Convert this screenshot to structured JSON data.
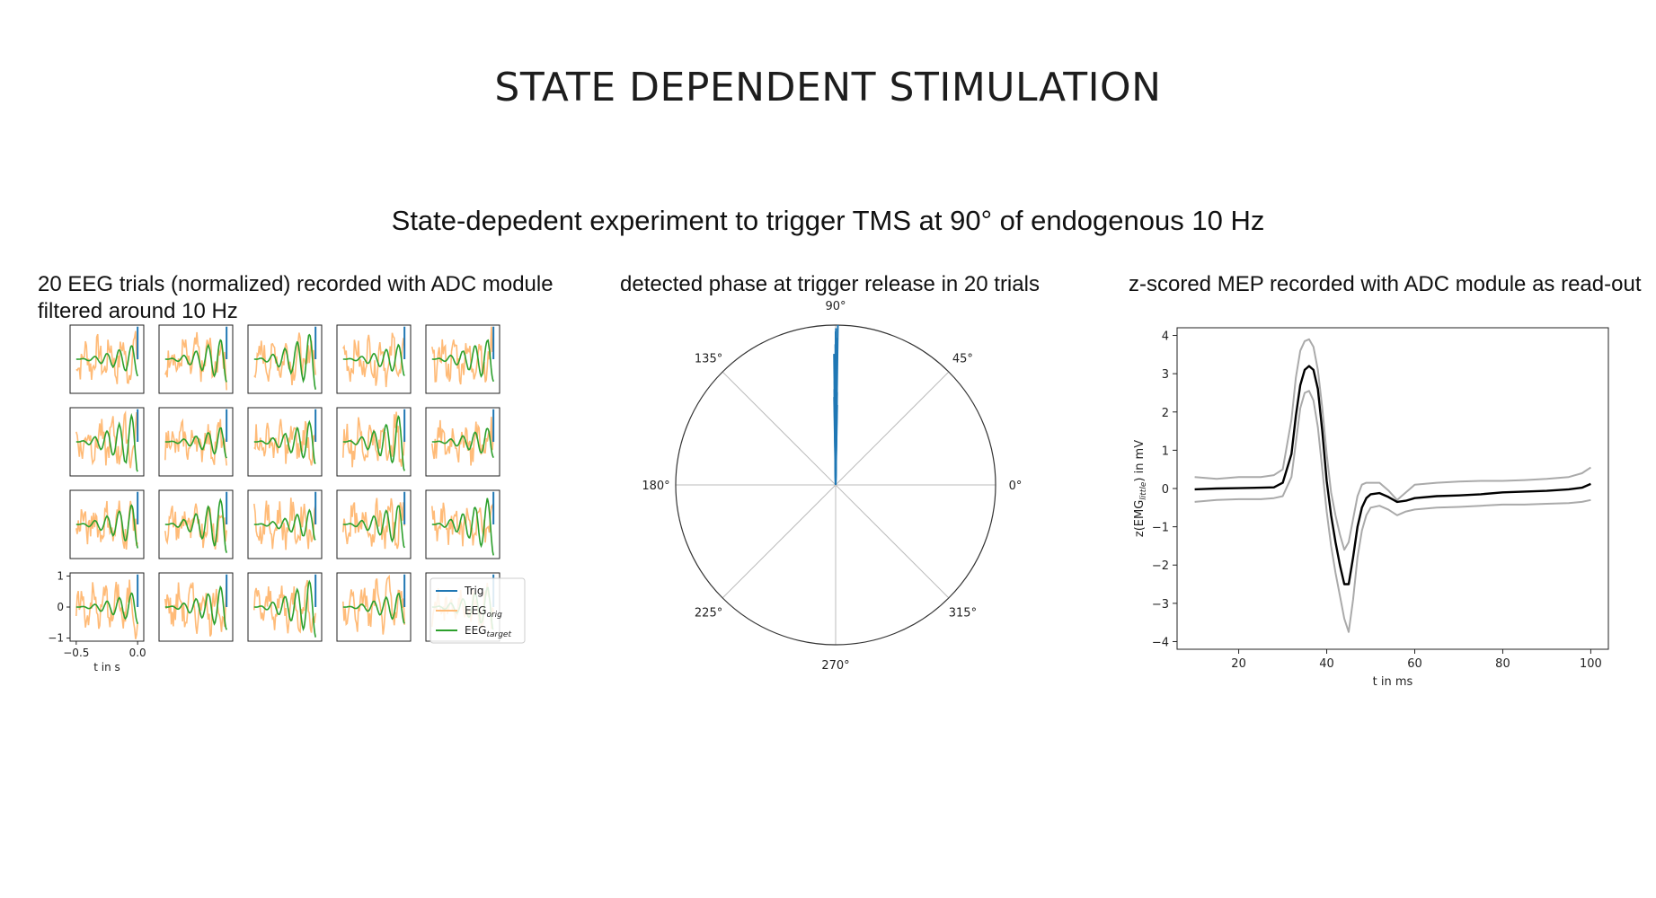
{
  "page": {
    "title": "STATE DEPENDENT STIMULATION",
    "subtitle": "State-depedent experiment to trigger TMS at 90° of endogenous 10 Hz"
  },
  "panels": {
    "eeg": {
      "caption_line1": "20 EEG trials (normalized) recorded with ADC module",
      "caption_line2": "filtered around 10 Hz"
    },
    "phase": {
      "caption": "detected phase at trigger release in 20 trials"
    },
    "mep": {
      "caption": "z-scored MEP recorded with ADC module as read-out"
    }
  },
  "colors": {
    "trig": "#1f77b4",
    "eeg_orig": "#ffbb78",
    "eeg_target": "#2ca02c",
    "mean": "#000000",
    "band": "#aaaaaa"
  },
  "chart_data": [
    {
      "id": "eeg-trials",
      "type": "line",
      "grid": "4x5 small multiples",
      "n_trials": 20,
      "xlabel": "t in s",
      "xlim": [
        -0.55,
        0.05
      ],
      "ylim": [
        -1.1,
        1.1
      ],
      "xticks": [
        -0.5,
        0.0
      ],
      "xtick_labels": [
        "−0.5",
        "0.0"
      ],
      "yticks": [
        1,
        0,
        -1
      ],
      "ytick_labels": [
        "1",
        "0",
        "−1"
      ],
      "target_freq_hz": 10,
      "series": [
        {
          "name": "Trig",
          "legend_label": "Trig",
          "legend_sub": ""
        },
        {
          "name": "EEG_orig",
          "legend_label": "EEG",
          "legend_sub": "orig"
        },
        {
          "name": "EEG_target",
          "legend_label": "EEG",
          "legend_sub": "target"
        }
      ],
      "legend": "lower-right of last row"
    },
    {
      "id": "phase-polar",
      "type": "polar",
      "title": "detected phase at trigger release in 20 trials",
      "angle_ticks": [
        0,
        45,
        90,
        135,
        180,
        225,
        270,
        315
      ],
      "angle_labels": [
        "0°",
        "45°",
        "90°",
        "135°",
        "180°",
        "225°",
        "270°",
        "315°"
      ],
      "phases_deg": [
        89.2,
        89.6,
        90.0,
        90.4,
        90.8,
        89.8,
        90.2,
        91.0,
        89.4,
        90.6,
        89.9,
        90.1,
        88.9,
        90.3,
        89.7,
        90.5,
        89.5,
        90.7,
        90.0,
        89.1
      ],
      "radii": [
        1.0,
        0.85,
        0.95,
        0.7,
        0.6,
        0.9,
        0.75,
        0.55,
        0.8,
        0.65,
        0.98,
        0.88,
        0.5,
        0.78,
        0.92,
        0.6,
        0.7,
        0.82,
        0.96,
        0.58
      ]
    },
    {
      "id": "mep",
      "type": "line",
      "xlabel": "t in ms",
      "ylabel_main": "z(EMG",
      "ylabel_sub": "little",
      "ylabel_tail": ") in mV",
      "xlim": [
        6,
        104
      ],
      "ylim": [
        -4.2,
        4.2
      ],
      "xticks": [
        20,
        40,
        60,
        80,
        100
      ],
      "yticks": [
        4,
        3,
        2,
        1,
        0,
        -1,
        -2,
        -3,
        -4
      ],
      "ytick_labels": [
        "4",
        "3",
        "2",
        "1",
        "0",
        "−1",
        "−2",
        "−3",
        "−4"
      ],
      "x": [
        10,
        15,
        20,
        25,
        28,
        30,
        32,
        33,
        34,
        35,
        36,
        37,
        38,
        39,
        40,
        41,
        42,
        43,
        44,
        45,
        46,
        47,
        48,
        49,
        50,
        52,
        54,
        56,
        58,
        60,
        65,
        70,
        75,
        80,
        85,
        90,
        95,
        98,
        100
      ],
      "series": [
        {
          "name": "mean",
          "values": [
            -0.02,
            0.0,
            0.01,
            0.02,
            0.03,
            0.15,
            0.9,
            1.9,
            2.7,
            3.1,
            3.2,
            3.1,
            2.6,
            1.5,
            0.2,
            -0.7,
            -1.4,
            -2.0,
            -2.5,
            -2.5,
            -1.8,
            -1.0,
            -0.5,
            -0.25,
            -0.15,
            -0.12,
            -0.22,
            -0.35,
            -0.32,
            -0.25,
            -0.2,
            -0.18,
            -0.15,
            -0.1,
            -0.08,
            -0.06,
            -0.02,
            0.02,
            0.12
          ]
        },
        {
          "name": "upper",
          "values": [
            0.3,
            0.25,
            0.3,
            0.3,
            0.35,
            0.5,
            1.8,
            2.9,
            3.6,
            3.85,
            3.9,
            3.7,
            3.1,
            2.1,
            0.9,
            -0.1,
            -0.7,
            -1.2,
            -1.6,
            -1.4,
            -0.8,
            -0.2,
            0.1,
            0.15,
            0.15,
            0.15,
            -0.05,
            -0.3,
            -0.1,
            0.1,
            0.15,
            0.18,
            0.2,
            0.2,
            0.22,
            0.25,
            0.3,
            0.4,
            0.55
          ]
        },
        {
          "name": "lower",
          "values": [
            -0.35,
            -0.3,
            -0.28,
            -0.28,
            -0.25,
            -0.2,
            0.3,
            1.2,
            2.1,
            2.5,
            2.55,
            2.3,
            1.6,
            0.5,
            -0.6,
            -1.5,
            -2.2,
            -2.8,
            -3.4,
            -3.75,
            -2.9,
            -1.8,
            -1.1,
            -0.7,
            -0.5,
            -0.45,
            -0.55,
            -0.7,
            -0.6,
            -0.55,
            -0.5,
            -0.48,
            -0.45,
            -0.42,
            -0.42,
            -0.4,
            -0.38,
            -0.35,
            -0.3
          ]
        }
      ]
    }
  ]
}
